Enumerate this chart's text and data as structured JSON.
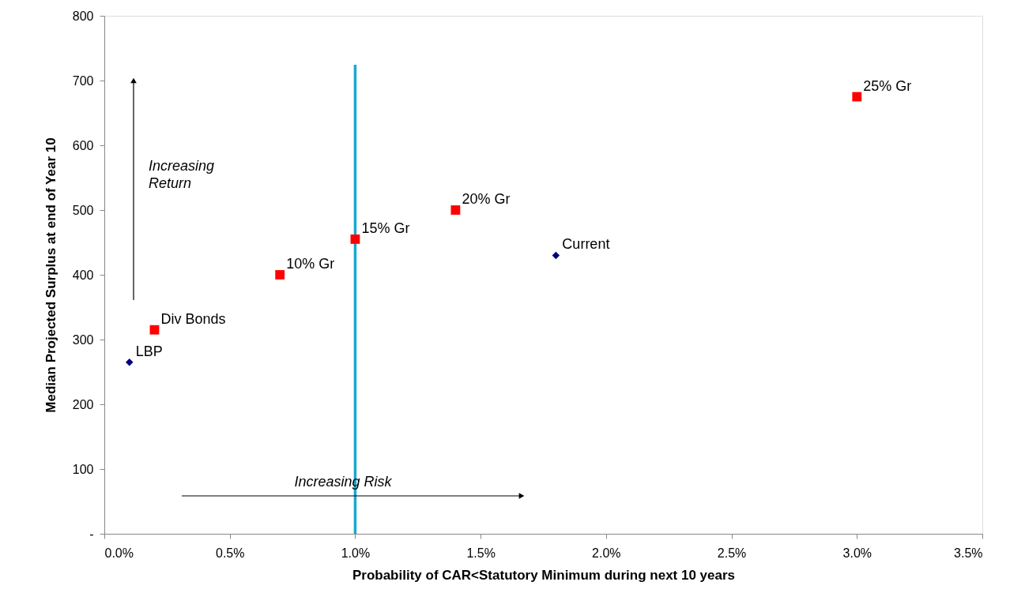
{
  "chart_data": {
    "type": "scatter",
    "xlabel": "Probability of CAR<Statutory Minimum during next 10 years",
    "ylabel": "Median Projected Surplus at end of Year 10",
    "series": [
      {
        "color": "#ff0000",
        "marker": "square",
        "x": [
          0.2,
          0.7,
          1.0,
          1.4,
          3.0
        ],
        "values": [
          315,
          400,
          455,
          500,
          675
        ]
      },
      {
        "color": "#000080",
        "marker": "diamond",
        "x": [
          0.1,
          1.8
        ],
        "values": [
          265,
          430
        ]
      }
    ],
    "xlim": [
      0,
      3.5
    ],
    "xticks": [
      {
        "value": 0,
        "label": "0.0%"
      },
      {
        "value": 0.5,
        "label": "0.5%"
      },
      {
        "value": 1.0,
        "label": "1.0%"
      },
      {
        "value": 1.5,
        "label": "1.5%"
      },
      {
        "value": 2.0,
        "label": "2.0%"
      },
      {
        "value": 2.5,
        "label": "2.5%"
      },
      {
        "value": 3.0,
        "label": "3.0%"
      },
      {
        "value": 3.5,
        "label": "3.5%"
      }
    ],
    "ylim": [
      0,
      800
    ],
    "yticks": [
      {
        "value": 0,
        "label": "-"
      },
      100,
      200,
      300,
      400,
      500,
      600,
      700,
      800
    ],
    "ref_lines": [
      {
        "axis": "x",
        "value": 1.0,
        "color": "#17a9d0"
      }
    ],
    "annotations": [
      "Increasing Return",
      "Increasing Risk",
      {
        "text": "LBP",
        "x": 0.1,
        "y": 265
      },
      {
        "text": "Div Bonds",
        "x": 0.2,
        "y": 315
      },
      {
        "text": "10% Gr",
        "x": 0.7,
        "y": 400
      },
      {
        "text": "15% Gr",
        "x": 1.0,
        "y": 455
      },
      {
        "text": "20% Gr",
        "x": 1.4,
        "y": 500
      },
      {
        "text": "Current",
        "x": 1.8,
        "y": 430
      },
      {
        "text": "25% Gr",
        "x": 3.0,
        "y": 675
      }
    ],
    "grid": false
  }
}
